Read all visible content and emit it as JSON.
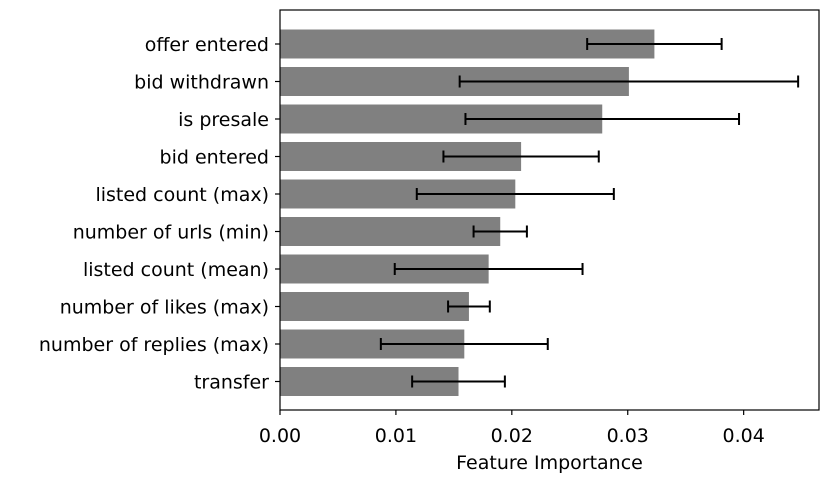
{
  "chart_data": {
    "type": "bar",
    "orientation": "horizontal",
    "title": "",
    "xlabel": "Feature Importance",
    "ylabel": "",
    "xlim": [
      0,
      0.0465
    ],
    "xticks": [
      "0.00",
      "0.01",
      "0.02",
      "0.03",
      "0.04"
    ],
    "xtick_values": [
      0,
      0.01,
      0.02,
      0.03,
      0.04
    ],
    "grid": false,
    "legend": "none",
    "bar_color": "#808080",
    "errorbar_color": "#000000",
    "categories": [
      "offer entered",
      "bid withdrawn",
      "is presale",
      "bid entered",
      "listed count (max)",
      "number of urls (min)",
      "listed count (mean)",
      "number of likes (max)",
      "number of replies (max)",
      "transfer"
    ],
    "values": [
      0.0323,
      0.0301,
      0.0278,
      0.0208,
      0.0203,
      0.019,
      0.018,
      0.0163,
      0.0159,
      0.0154
    ],
    "errors": [
      0.0058,
      0.0146,
      0.0118,
      0.0067,
      0.0085,
      0.0023,
      0.0081,
      0.0018,
      0.0072,
      0.004
    ]
  }
}
